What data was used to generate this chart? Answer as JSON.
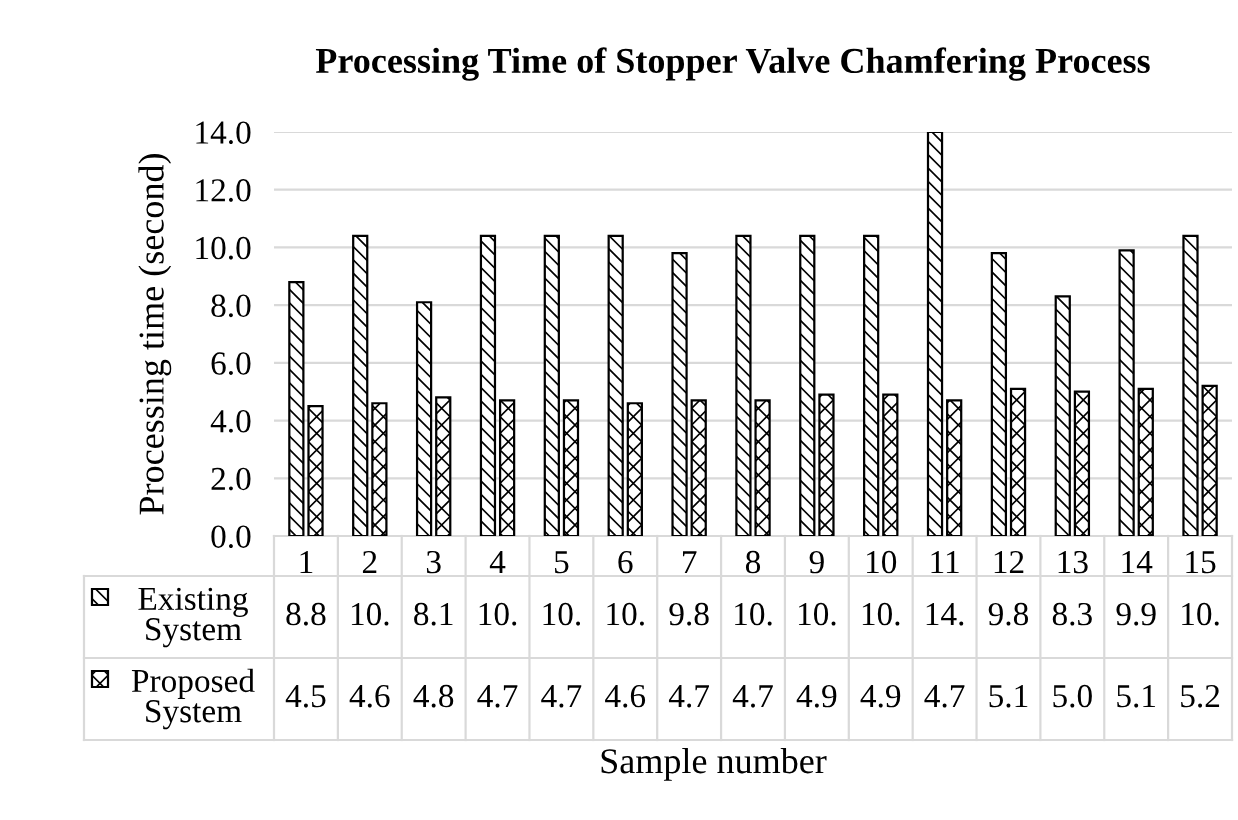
{
  "chart_data": {
    "type": "bar",
    "title": "Processing Time of Stopper Valve Chamfering Process",
    "xlabel": "Sample number",
    "ylabel": "Processing time (second)",
    "categories": [
      "1",
      "2",
      "3",
      "4",
      "5",
      "6",
      "7",
      "8",
      "9",
      "10",
      "11",
      "12",
      "13",
      "14",
      "15"
    ],
    "series": [
      {
        "name": "Existing System",
        "color": "#000000",
        "values": [
          8.8,
          10.4,
          8.1,
          10.4,
          10.4,
          10.4,
          9.8,
          10.4,
          10.4,
          10.4,
          14.0,
          9.8,
          8.3,
          9.9,
          10.4
        ],
        "value_labels": [
          "8.8",
          "10.",
          "8.1",
          "10.",
          "10.",
          "10.",
          "9.8",
          "10.",
          "10.",
          "10.",
          "14.",
          "9.8",
          "8.3",
          "9.9",
          "10."
        ]
      },
      {
        "name": "Proposed System",
        "color": "#000000",
        "values": [
          4.5,
          4.6,
          4.8,
          4.7,
          4.7,
          4.6,
          4.7,
          4.7,
          4.9,
          4.9,
          4.7,
          5.1,
          5.0,
          5.1,
          5.2
        ],
        "value_labels": [
          "4.5",
          "4.6",
          "4.8",
          "4.7",
          "4.7",
          "4.6",
          "4.7",
          "4.7",
          "4.9",
          "4.9",
          "4.7",
          "5.1",
          "5.0",
          "5.1",
          "5.2"
        ]
      }
    ],
    "ylim": [
      0,
      14
    ],
    "yticks": [
      {
        "value": 0,
        "label": "0.0"
      },
      {
        "value": 2,
        "label": "2.0"
      },
      {
        "value": 4,
        "label": "4.0"
      },
      {
        "value": 6,
        "label": "6.0"
      },
      {
        "value": 8,
        "label": "8.0"
      },
      {
        "value": 10,
        "label": "10.0"
      },
      {
        "value": 12,
        "label": "12.0"
      },
      {
        "value": 14,
        "label": "14.0"
      }
    ],
    "grid": "y",
    "legend": "bottom"
  }
}
